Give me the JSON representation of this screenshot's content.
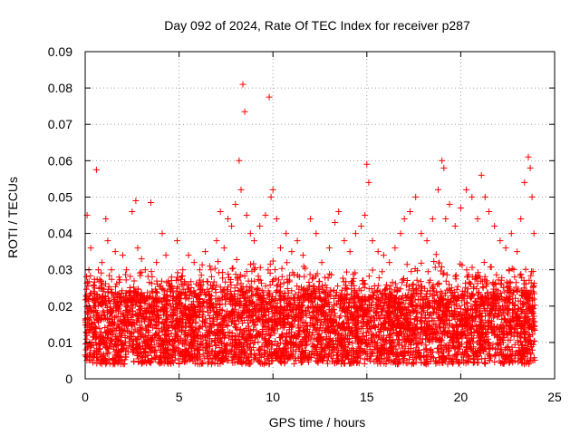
{
  "chart_data": {
    "type": "scatter",
    "title": "Day 092 of 2024, Rate Of TEC Index for receiver p287",
    "xlabel": "GPS time / hours",
    "ylabel": "ROTI / TECUs",
    "xlim": [
      0,
      25
    ],
    "ylim": [
      0,
      0.09
    ],
    "x_ticks": [
      "0",
      "5",
      "10",
      "15",
      "20",
      "25"
    ],
    "y_ticks": [
      "0",
      "0.01",
      "0.02",
      "0.03",
      "0.04",
      "0.05",
      "0.06",
      "0.07",
      "0.08",
      "0.09"
    ],
    "grid": true,
    "marker": "+",
    "color": "#ff0000",
    "series": [
      {
        "x": [
          0.1,
          0.2,
          0.3,
          0.5,
          0.6,
          0.7,
          0.9,
          1.1,
          1.2,
          1.4,
          1.6,
          1.8,
          2.0,
          2.2,
          2.5,
          2.7,
          2.8,
          3.0,
          3.2,
          3.5,
          3.8,
          4.1,
          4.3,
          4.6,
          4.9,
          5.2,
          5.5,
          5.8,
          6.1,
          6.4,
          6.7,
          7.0,
          7.2,
          7.4,
          7.6,
          7.8,
          8.0,
          8.2,
          8.3,
          8.4,
          8.5,
          8.6,
          8.8,
          9.0,
          9.3,
          9.6,
          9.8,
          9.9,
          10.0,
          10.2,
          10.4,
          10.7,
          11.0,
          11.3,
          11.6,
          12.0,
          12.3,
          12.6,
          13.0,
          13.3,
          13.5,
          13.8,
          14.1,
          14.4,
          14.7,
          14.9,
          15.0,
          15.1,
          15.3,
          15.6,
          15.9,
          16.2,
          16.5,
          16.8,
          17.0,
          17.3,
          17.6,
          17.9,
          18.2,
          18.5,
          18.8,
          19.0,
          19.1,
          19.2,
          19.4,
          19.7,
          20.0,
          20.3,
          20.6,
          20.9,
          21.1,
          21.3,
          21.5,
          21.8,
          22.1,
          22.4,
          22.7,
          23.0,
          23.2,
          23.4,
          23.6,
          23.7,
          23.8,
          23.9
        ],
        "y": [
          0.045,
          0.03,
          0.036,
          0.025,
          0.0575,
          0.03,
          0.032,
          0.044,
          0.038,
          0.03,
          0.035,
          0.028,
          0.034,
          0.03,
          0.046,
          0.049,
          0.036,
          0.033,
          0.03,
          0.0485,
          0.032,
          0.04,
          0.034,
          0.028,
          0.038,
          0.03,
          0.034,
          0.032,
          0.03,
          0.035,
          0.03,
          0.038,
          0.046,
          0.036,
          0.044,
          0.042,
          0.048,
          0.06,
          0.052,
          0.081,
          0.0735,
          0.045,
          0.04,
          0.038,
          0.042,
          0.045,
          0.0775,
          0.05,
          0.052,
          0.044,
          0.036,
          0.04,
          0.035,
          0.038,
          0.034,
          0.044,
          0.04,
          0.032,
          0.036,
          0.043,
          0.046,
          0.038,
          0.035,
          0.04,
          0.042,
          0.045,
          0.059,
          0.054,
          0.038,
          0.035,
          0.034,
          0.032,
          0.036,
          0.04,
          0.044,
          0.046,
          0.05,
          0.04,
          0.038,
          0.044,
          0.052,
          0.06,
          0.058,
          0.044,
          0.048,
          0.042,
          0.047,
          0.052,
          0.05,
          0.044,
          0.056,
          0.05,
          0.046,
          0.042,
          0.038,
          0.036,
          0.04,
          0.035,
          0.044,
          0.054,
          0.061,
          0.058,
          0.05,
          0.04
        ]
      }
    ],
    "density": {
      "band_low": 0.004,
      "band_high": 0.022,
      "upper_profile": [
        [
          0,
          0.03
        ],
        [
          1,
          0.032
        ],
        [
          2,
          0.03
        ],
        [
          3,
          0.032
        ],
        [
          4,
          0.03
        ],
        [
          5,
          0.032
        ],
        [
          6,
          0.033
        ],
        [
          7,
          0.036
        ],
        [
          8,
          0.038
        ],
        [
          9,
          0.035
        ],
        [
          10,
          0.036
        ],
        [
          11,
          0.032
        ],
        [
          12,
          0.032
        ],
        [
          13,
          0.033
        ],
        [
          14,
          0.032
        ],
        [
          15,
          0.034
        ],
        [
          16,
          0.03
        ],
        [
          17,
          0.032
        ],
        [
          18,
          0.034
        ],
        [
          19,
          0.036
        ],
        [
          20,
          0.034
        ],
        [
          21,
          0.036
        ],
        [
          22,
          0.032
        ],
        [
          23,
          0.034
        ],
        [
          23.9,
          0.035
        ]
      ]
    }
  }
}
